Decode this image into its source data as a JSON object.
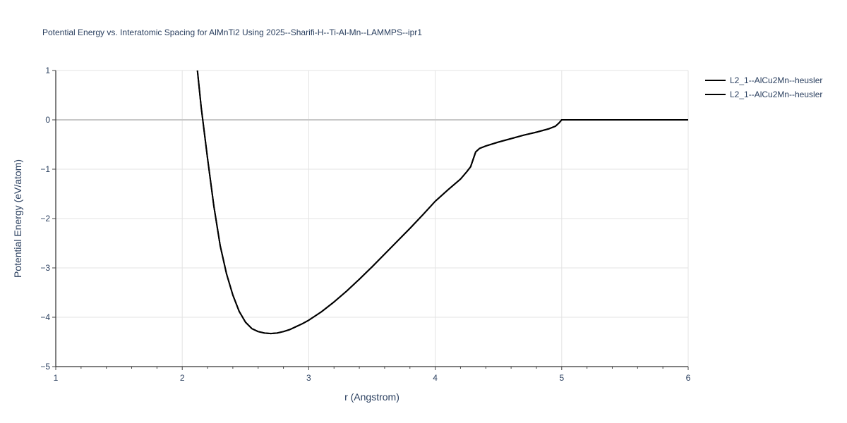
{
  "chart_data": {
    "type": "line",
    "title": "Potential Energy vs. Interatomic Spacing for AlMnTi2 Using 2025--Sharifi-H--Ti-Al-Mn--LAMMPS--ipr1",
    "xlabel": "r (Angstrom)",
    "ylabel": "Potential Energy (eV/atom)",
    "xlim": [
      1,
      6
    ],
    "ylim": [
      -5,
      1
    ],
    "xticks": [
      1,
      2,
      3,
      4,
      5,
      6
    ],
    "xtick_labels": [
      "1",
      "2",
      "3",
      "4",
      "5",
      "6"
    ],
    "yticks": [
      1,
      0,
      -1,
      -2,
      -3,
      -4,
      -5
    ],
    "ytick_labels": [
      "1",
      "0",
      "−1",
      "−2",
      "−3",
      "−4",
      "−5"
    ],
    "grid": true,
    "legend_position": "top-right",
    "series": [
      {
        "name": "L2_1--AlCu2Mn--heusler",
        "color": "#000000",
        "x": [
          2.12,
          2.15,
          2.2,
          2.25,
          2.3,
          2.35,
          2.4,
          2.45,
          2.5,
          2.55,
          2.6,
          2.65,
          2.7,
          2.75,
          2.8,
          2.85,
          2.9,
          2.95,
          3.0,
          3.1,
          3.2,
          3.3,
          3.4,
          3.5,
          3.6,
          3.7,
          3.8,
          3.9,
          4.0,
          4.1,
          4.2,
          4.25,
          4.28,
          4.3,
          4.32,
          4.35,
          4.4,
          4.5,
          4.6,
          4.7,
          4.8,
          4.9,
          4.95,
          4.98,
          5.0,
          5.5,
          6.0
        ],
        "values": [
          1.0,
          0.25,
          -0.78,
          -1.75,
          -2.55,
          -3.12,
          -3.55,
          -3.88,
          -4.1,
          -4.23,
          -4.29,
          -4.32,
          -4.33,
          -4.32,
          -4.29,
          -4.25,
          -4.19,
          -4.13,
          -4.06,
          -3.89,
          -3.69,
          -3.47,
          -3.23,
          -2.98,
          -2.72,
          -2.46,
          -2.2,
          -1.93,
          -1.65,
          -1.42,
          -1.2,
          -1.05,
          -0.95,
          -0.8,
          -0.65,
          -0.58,
          -0.53,
          -0.45,
          -0.38,
          -0.31,
          -0.25,
          -0.18,
          -0.13,
          -0.06,
          0.0,
          0.0,
          0.0
        ]
      },
      {
        "name": "L2_1--AlCu2Mn--heusler",
        "color": "#000000",
        "x": [
          2.12,
          2.15,
          2.2,
          2.25,
          2.3,
          2.35,
          2.4,
          2.45,
          2.5,
          2.55,
          2.6,
          2.65,
          2.7,
          2.75,
          2.8,
          2.85,
          2.9,
          2.95,
          3.0,
          3.1,
          3.2,
          3.3,
          3.4,
          3.5,
          3.6,
          3.7,
          3.8,
          3.9,
          4.0,
          4.1,
          4.2,
          4.25,
          4.28,
          4.3,
          4.32,
          4.35,
          4.4,
          4.5,
          4.6,
          4.7,
          4.8,
          4.9,
          4.95,
          4.98,
          5.0,
          5.5,
          6.0
        ],
        "values": [
          1.0,
          0.25,
          -0.78,
          -1.75,
          -2.55,
          -3.12,
          -3.55,
          -3.88,
          -4.1,
          -4.23,
          -4.29,
          -4.32,
          -4.33,
          -4.32,
          -4.29,
          -4.25,
          -4.19,
          -4.13,
          -4.06,
          -3.89,
          -3.69,
          -3.47,
          -3.23,
          -2.98,
          -2.72,
          -2.46,
          -2.2,
          -1.93,
          -1.65,
          -1.42,
          -1.2,
          -1.05,
          -0.95,
          -0.8,
          -0.65,
          -0.58,
          -0.53,
          -0.45,
          -0.38,
          -0.31,
          -0.25,
          -0.18,
          -0.13,
          -0.06,
          0.0,
          0.0,
          0.0
        ]
      }
    ]
  }
}
